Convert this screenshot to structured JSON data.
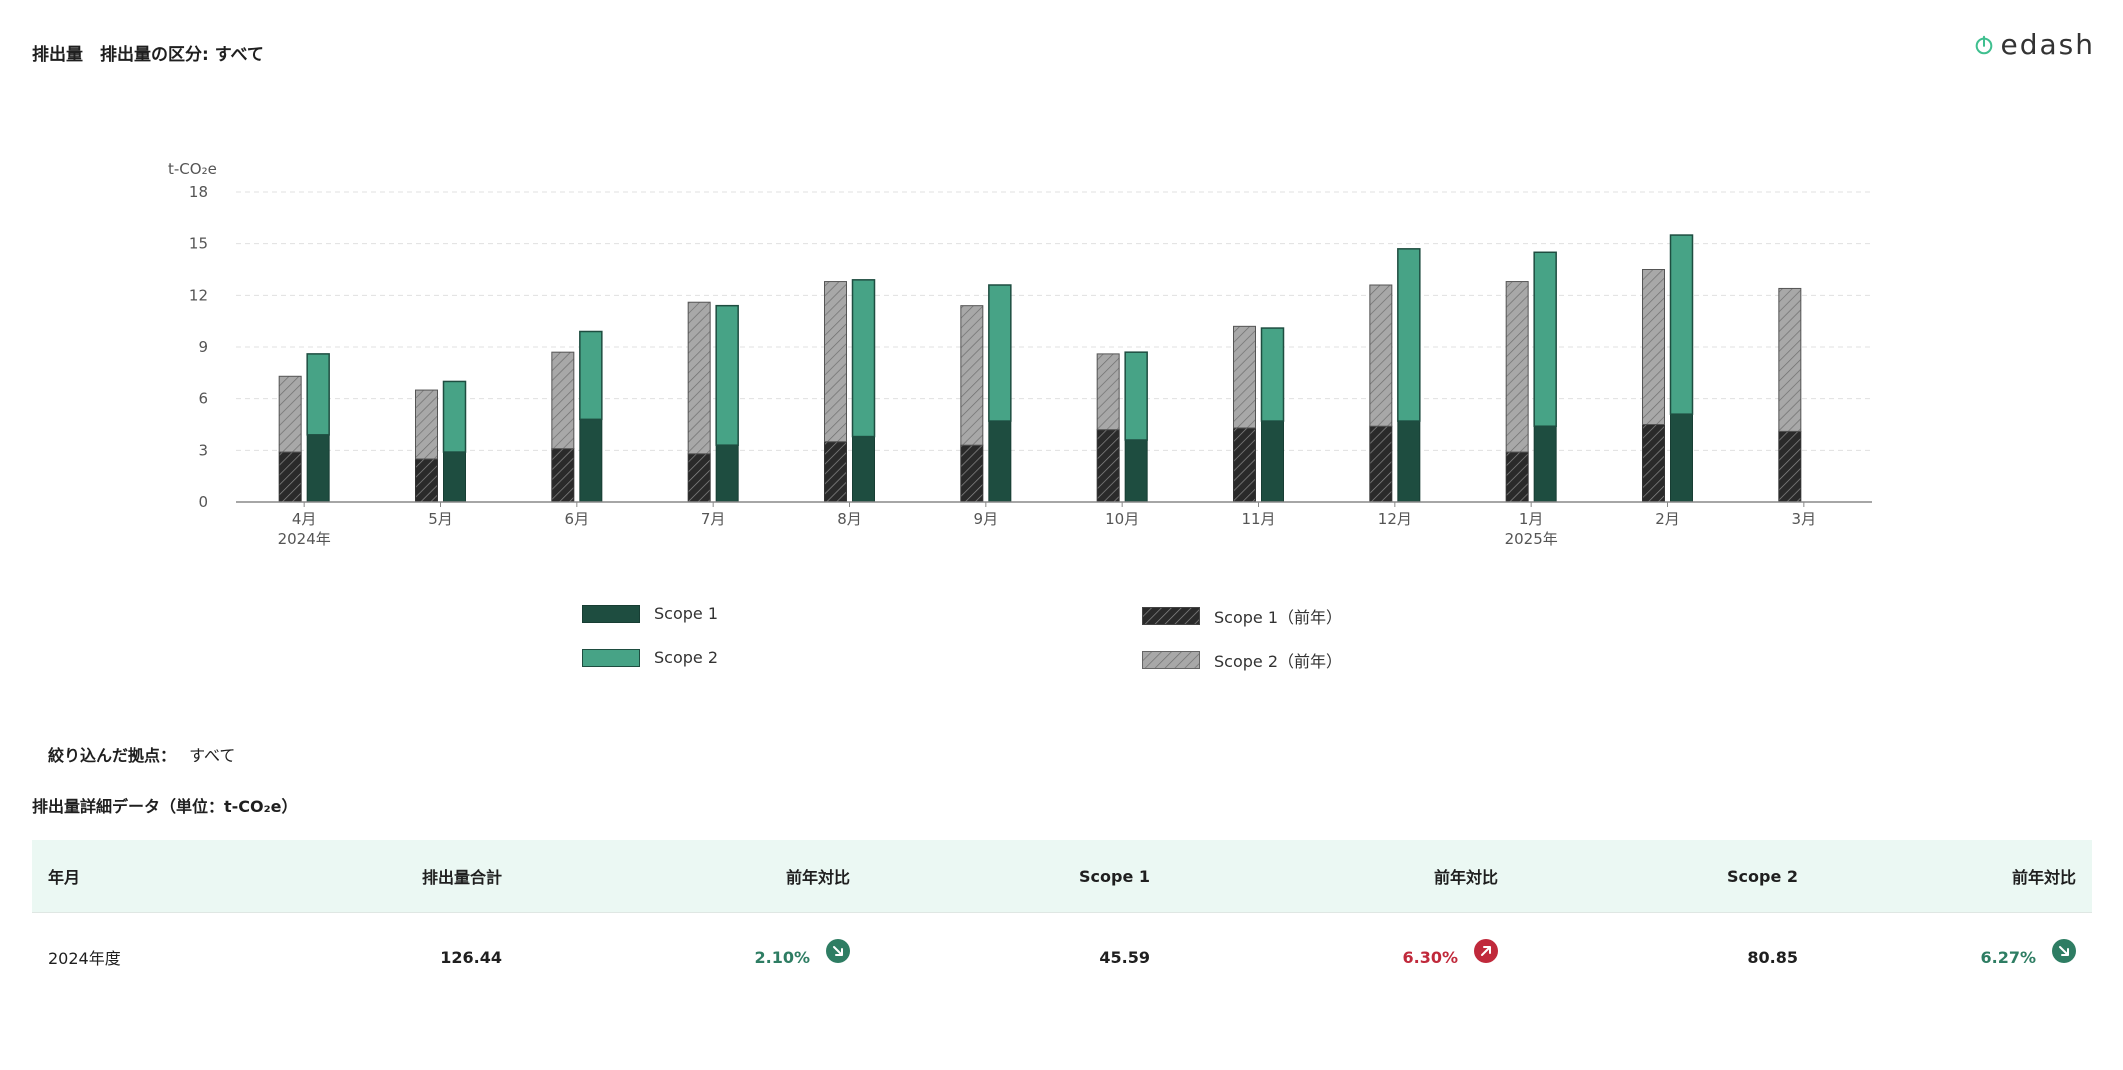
{
  "header": {
    "title": "排出量　排出量の区分: すべて",
    "logo_text": "edash"
  },
  "chart_data": {
    "type": "bar",
    "ylabel": "t-CO₂e",
    "ylim": [
      0,
      18
    ],
    "yticks": [
      0,
      3,
      6,
      9,
      12,
      15,
      18
    ],
    "grid": true,
    "categories": [
      "4月",
      "5月",
      "6月",
      "7月",
      "8月",
      "9月",
      "10月",
      "11月",
      "12月",
      "1月",
      "2月",
      "3月"
    ],
    "year_labels": [
      "2024年",
      "",
      "",
      "",
      "",
      "",
      "",
      "",
      "",
      "2025年",
      "",
      ""
    ],
    "series": [
      {
        "name": "Scope 1",
        "stack": "current",
        "color": "#1e4d40",
        "values": [
          3.9,
          2.9,
          4.8,
          3.3,
          3.8,
          4.7,
          3.6,
          4.7,
          4.7,
          4.4,
          5.1,
          null
        ]
      },
      {
        "name": "Scope 2",
        "stack": "current",
        "color": "#47a386",
        "values": [
          4.7,
          4.1,
          5.1,
          8.1,
          9.1,
          7.9,
          5.1,
          5.4,
          10.0,
          10.1,
          10.4,
          null
        ]
      },
      {
        "name": "Scope 1（前年）",
        "stack": "previous",
        "color": "#2a2a2a",
        "values": [
          2.9,
          2.5,
          3.1,
          2.8,
          3.5,
          3.3,
          4.2,
          4.3,
          4.4,
          2.9,
          4.5,
          4.1
        ]
      },
      {
        "name": "Scope 2（前年）",
        "stack": "previous",
        "color": "#9a9a9a",
        "values": [
          4.4,
          4.0,
          5.6,
          8.8,
          9.3,
          8.1,
          4.4,
          5.9,
          8.2,
          9.9,
          9.0,
          8.3
        ]
      }
    ],
    "legend_position": "bottom"
  },
  "legend": {
    "items": [
      "Scope 1",
      "Scope 2",
      "Scope 1（前年）",
      "Scope 2（前年）"
    ]
  },
  "filter": {
    "label": "絞り込んだ拠点：",
    "value": "すべて"
  },
  "detail": {
    "title": "排出量詳細データ（単位：t-CO₂e）",
    "headers": [
      "年月",
      "排出量合計",
      "前年対比",
      "Scope 1",
      "前年対比",
      "Scope 2",
      "前年対比"
    ],
    "row": {
      "period": "2024年度",
      "total": "126.44",
      "total_yoy": "2.10%",
      "total_trend": "down",
      "scope1": "45.59",
      "scope1_yoy": "6.30%",
      "scope1_trend": "up",
      "scope2": "80.85",
      "scope2_yoy": "6.27%",
      "scope2_trend": "down"
    }
  },
  "colors": {
    "down": "#2e7d63",
    "up": "#c0293b",
    "header_bg": "#ebf8f3"
  }
}
